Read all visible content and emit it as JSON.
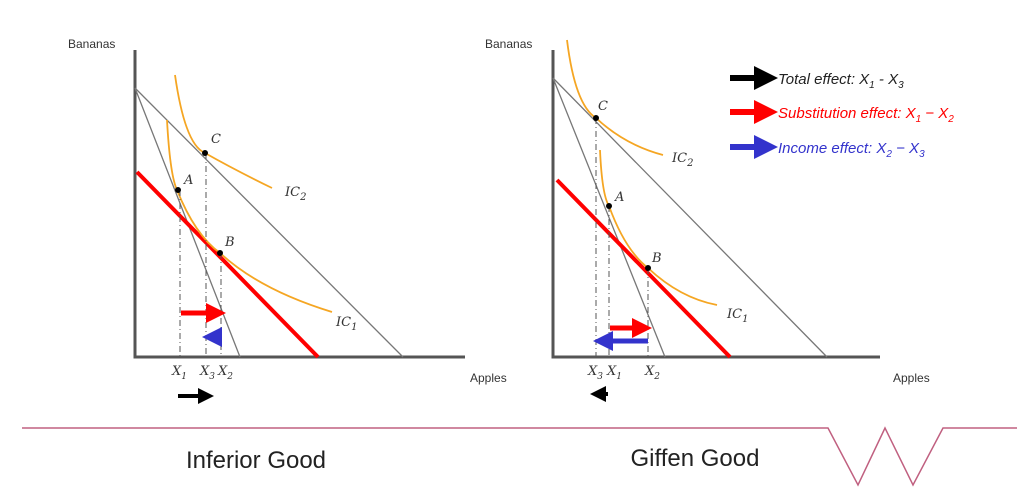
{
  "colors": {
    "total": "#000000",
    "substitution": "#ff0000",
    "income": "#3333cc",
    "indifference": "#f5a623",
    "divider": "#c06080"
  },
  "left": {
    "y_label": "Bananas",
    "x_label": "Apples",
    "title": "Inferior Good",
    "points": {
      "a": "A",
      "b": "B",
      "c": "C"
    },
    "curves": {
      "ic1": "IC",
      "ic1_sub": "1",
      "ic2": "IC",
      "ic2_sub": "2"
    },
    "ticks": [
      {
        "x": "X",
        "sub": "1"
      },
      {
        "x": "X",
        "sub": "3"
      },
      {
        "x": "X",
        "sub": "2"
      }
    ]
  },
  "right": {
    "y_label": "Bananas",
    "x_label": "Apples",
    "title": "Giffen Good",
    "points": {
      "a": "A",
      "b": "B",
      "c": "C"
    },
    "curves": {
      "ic1": "IC",
      "ic1_sub": "1",
      "ic2": "IC",
      "ic2_sub": "2"
    },
    "ticks": [
      {
        "x": "X",
        "sub": "3"
      },
      {
        "x": "X",
        "sub": "1"
      },
      {
        "x": "X",
        "sub": "2"
      }
    ]
  },
  "legend": [
    {
      "label": "Total effect: X",
      "s1": "1",
      "mid": " - X",
      "s2": "3",
      "color": "#000000"
    },
    {
      "label": "Substitution effect: X",
      "s1": "1",
      "mid": " − X",
      "s2": "2",
      "color": "#ff0000"
    },
    {
      "label": "Income effect: X",
      "s1": "2",
      "mid": " − X",
      "s2": "3",
      "color": "#3333cc"
    }
  ]
}
